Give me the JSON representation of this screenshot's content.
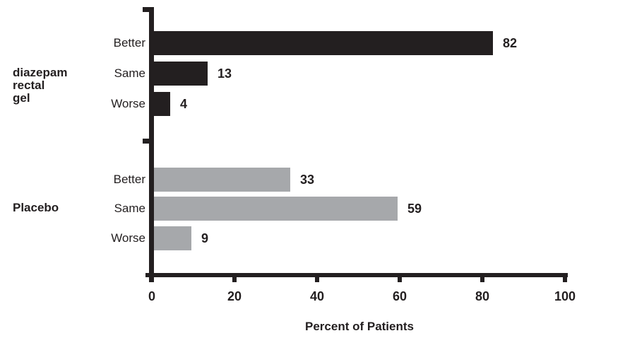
{
  "chart_data": {
    "type": "bar",
    "orientation": "horizontal",
    "xlabel": "Percent of Patients",
    "xlim": [
      0,
      100
    ],
    "x_ticks": [
      0,
      20,
      40,
      60,
      80,
      100
    ],
    "categories": [
      "Better",
      "Same",
      "Worse"
    ],
    "grid": false,
    "legend": "none",
    "colors": {
      "diazepam_bar": "#231f20",
      "placebo_bar": "#a6a8ab",
      "axis": "#231f20",
      "text": "#231f20"
    },
    "groups": [
      {
        "name": "diazepam rectal gel",
        "name_lines": [
          "diazepam",
          "rectal",
          "gel"
        ],
        "color": "#231f20",
        "bars": [
          {
            "category": "Better",
            "value": 82
          },
          {
            "category": "Same",
            "value": 13
          },
          {
            "category": "Worse",
            "value": 4
          }
        ]
      },
      {
        "name": "Placebo",
        "name_lines": [
          "Placebo"
        ],
        "color": "#a6a8ab",
        "bars": [
          {
            "category": "Better",
            "value": 33
          },
          {
            "category": "Same",
            "value": 59
          },
          {
            "category": "Worse",
            "value": 9
          }
        ]
      }
    ]
  }
}
